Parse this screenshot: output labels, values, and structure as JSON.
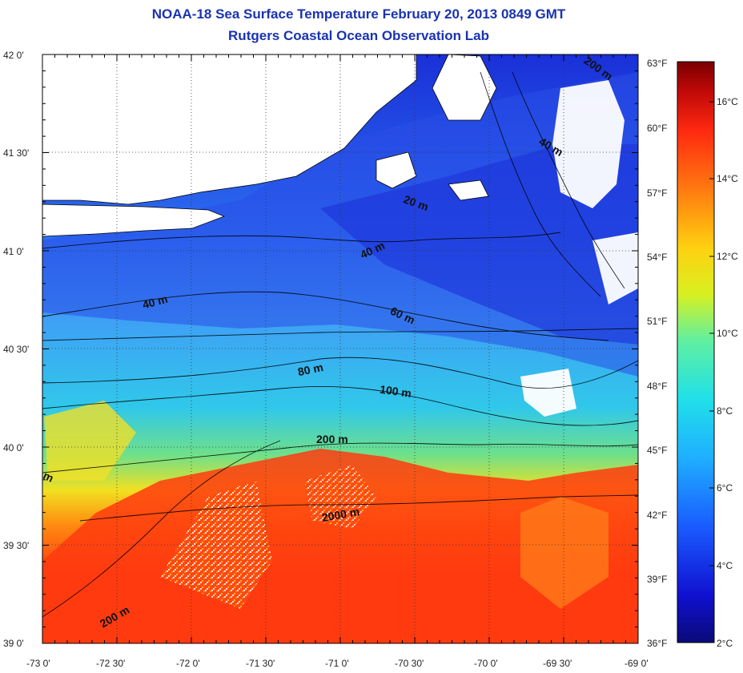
{
  "title": "NOAA-18 Sea Surface Temperature February 20, 2013 0849 GMT",
  "subtitle": "Rutgers Coastal Ocean Observation Lab",
  "lat_ticks": [
    "42 0'",
    "41 30'",
    "41 0'",
    "40 30'",
    "40 0'",
    "39 30'",
    "39 0'"
  ],
  "lon_ticks": [
    "-73 0'",
    "-72 30'",
    "-72 0'",
    "-71 30'",
    "-71 0'",
    "-70 30'",
    "-70 0'",
    "-69 30'",
    "-69 0'"
  ],
  "fahrenheit_ticks": [
    "63°F",
    "60°F",
    "57°F",
    "54°F",
    "51°F",
    "48°F",
    "45°F",
    "42°F",
    "39°F",
    "36°F"
  ],
  "celsius_ticks": [
    "16°C",
    "14°C",
    "12°C",
    "10°C",
    "8°C",
    "6°C",
    "4°C",
    "2°C"
  ],
  "contour_labels": [
    "200 m",
    "40 m",
    "20 m",
    "40 m",
    "40 m",
    "60 m",
    "80 m",
    "100 m",
    "200 m",
    "2000 m",
    "200 m",
    "m"
  ],
  "colors": {
    "title": "#1a33b0",
    "land": "#ffffff",
    "cold": "#1a2fd9",
    "cool": "#3fa0f5",
    "mid": "#22d6e0",
    "warm": "#f5e020",
    "hot": "#ff3b0f",
    "scale_top": "#7a0000",
    "scale_bottom": "#0a0a78"
  }
}
